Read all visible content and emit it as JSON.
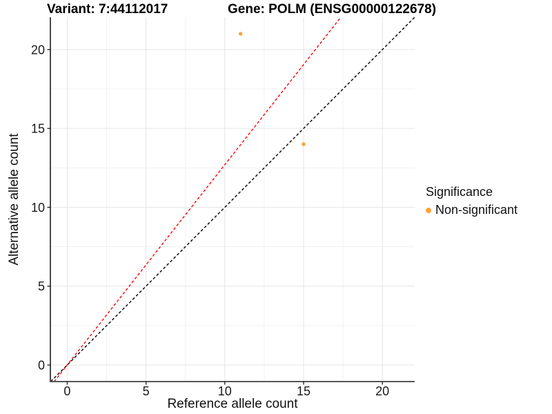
{
  "titles": {
    "left": "Variant: 7:44112017",
    "right": "Gene: POLM (ENSG00000122678)"
  },
  "chart_data": {
    "type": "scatter",
    "xlabel": "Reference allele count",
    "ylabel": "Alternative allele count",
    "xlim": [
      -1.07,
      22.05
    ],
    "ylim": [
      -1.05,
      22.05
    ],
    "x_ticks": [
      0,
      5,
      10,
      15,
      20
    ],
    "y_ticks": [
      0,
      5,
      10,
      15,
      20
    ],
    "x_minor_ticks": [
      2.5,
      7.5,
      12.5,
      17.5
    ],
    "y_minor_ticks": [
      2.5,
      7.5,
      12.5,
      17.5
    ],
    "grid": true,
    "points": [
      {
        "x": 11,
        "y": 21,
        "series": "Non-significant"
      },
      {
        "x": 15,
        "y": 14,
        "series": "Non-significant"
      }
    ],
    "lines": [
      {
        "name": "identity-line",
        "slope": 1.0,
        "intercept": 0,
        "color": "#000000",
        "dash": "4 3"
      },
      {
        "name": "expected-ratio-line",
        "slope": 1.27,
        "intercept": 0,
        "color": "#FF0000",
        "dash": "4 3"
      }
    ],
    "legend": {
      "title": "Significance",
      "position": "right",
      "items": [
        {
          "label": "Non-significant",
          "color": "#FAA43A"
        }
      ]
    },
    "point_color": "#FAA43A",
    "colors": {
      "grid_major": "#E4E4E4",
      "grid_minor": "#F1F1F1",
      "axis_line_x": "#555555",
      "axis_line_y": "#1a1a1a",
      "tick_mark": "#1a1a1a",
      "tick_label": "#1a1a1a"
    }
  }
}
